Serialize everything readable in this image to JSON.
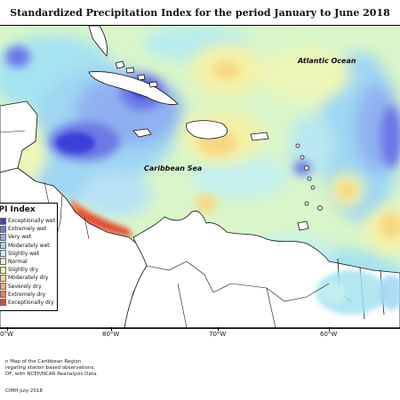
{
  "title": "Standardized Precipitation Index for the period January to June 2018",
  "map_labels": {
    "ocean": "Atlantic Ocean",
    "sea": "Caribbean Sea"
  },
  "legend": {
    "title": "SPI Index",
    "items": [
      {
        "label": "Exceptionally wet",
        "color": "#3a3fd8"
      },
      {
        "label": "Extremely wet",
        "color": "#6c78e6"
      },
      {
        "label": "Very wet",
        "color": "#8fb1f0"
      },
      {
        "label": "Moderately wet",
        "color": "#9fd6f3"
      },
      {
        "label": "Slightly wet",
        "color": "#c4f0ef"
      },
      {
        "label": "Normal",
        "color": "#e6f7c7"
      },
      {
        "label": "Slightly dry",
        "color": "#f4f1a8"
      },
      {
        "label": "Moderately dry",
        "color": "#f7d783"
      },
      {
        "label": "Severely dry",
        "color": "#f3b26c"
      },
      {
        "label": "Extremely dry",
        "color": "#ee7e53"
      },
      {
        "label": "Exceptionally dry",
        "color": "#e44732"
      }
    ]
  },
  "axis_labels": [
    "0°W",
    "80°W",
    "70°W",
    "60°W"
  ],
  "notes": [
    "n Map of the Caribbean Region.",
    "regating station based observations,",
    "DF, with NCEP/NCAR Reanalysis Data."
  ],
  "credit": "CIMH July-2018"
}
